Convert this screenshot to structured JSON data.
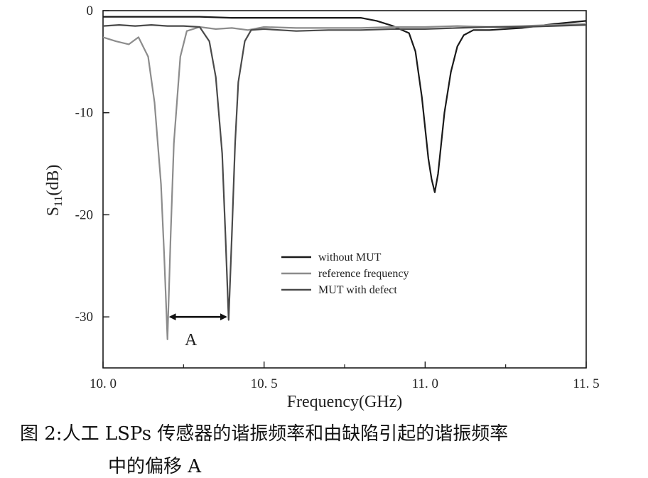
{
  "chart_data": {
    "type": "line",
    "xlabel": "Frequency(GHz)",
    "ylabel_main": "S",
    "ylabel_sub": "11",
    "ylabel_suffix": "(dB)",
    "xlim": [
      10.0,
      11.5
    ],
    "ylim": [
      -35,
      0
    ],
    "xticks": [
      {
        "value": 10.0,
        "label": "10. 0"
      },
      {
        "value": 10.5,
        "label": "10. 5"
      },
      {
        "value": 11.0,
        "label": "11. 0"
      },
      {
        "value": 11.5,
        "label": "11. 5"
      }
    ],
    "yticks": [
      {
        "value": 0,
        "label": "0"
      },
      {
        "value": -10,
        "label": "-10"
      },
      {
        "value": -20,
        "label": "-20"
      },
      {
        "value": -30,
        "label": "-30"
      }
    ],
    "grid": false,
    "legend_position": "center-right",
    "series": [
      {
        "name": "without MUT",
        "color": "#1a1a1a",
        "x": [
          10.0,
          10.1,
          10.2,
          10.3,
          10.4,
          10.5,
          10.6,
          10.7,
          10.8,
          10.85,
          10.9,
          10.95,
          10.97,
          10.99,
          11.01,
          11.02,
          11.03,
          11.04,
          11.06,
          11.08,
          11.1,
          11.12,
          11.15,
          11.2,
          11.3,
          11.4,
          11.5
        ],
        "y": [
          -0.6,
          -0.6,
          -0.6,
          -0.6,
          -0.7,
          -0.7,
          -0.7,
          -0.7,
          -0.7,
          -1.0,
          -1.5,
          -2.2,
          -4.0,
          -8.5,
          -14.5,
          -16.5,
          -17.8,
          -16.0,
          -10.0,
          -6.0,
          -3.5,
          -2.4,
          -1.9,
          -1.9,
          -1.7,
          -1.3,
          -1.0
        ]
      },
      {
        "name": "reference frequency",
        "color": "#8c8c8c",
        "x": [
          10.0,
          10.04,
          10.08,
          10.11,
          10.14,
          10.16,
          10.18,
          10.19,
          10.2,
          10.21,
          10.22,
          10.24,
          10.26,
          10.3,
          10.35,
          10.4,
          10.45,
          10.5,
          10.6,
          10.7,
          10.8,
          10.9,
          11.0,
          11.1,
          11.2,
          11.3,
          11.4,
          11.5
        ],
        "y": [
          -2.6,
          -3.0,
          -3.3,
          -2.6,
          -4.5,
          -9.0,
          -17.0,
          -24.0,
          -32.2,
          -22.0,
          -13.0,
          -4.5,
          -2.0,
          -1.6,
          -1.8,
          -1.7,
          -1.9,
          -1.6,
          -1.7,
          -1.7,
          -1.7,
          -1.6,
          -1.6,
          -1.5,
          -1.6,
          -1.5,
          -1.4,
          -1.3
        ]
      },
      {
        "name": "MUT with defect",
        "color": "#4a4a4a",
        "x": [
          10.0,
          10.05,
          10.1,
          10.15,
          10.2,
          10.25,
          10.3,
          10.33,
          10.35,
          10.37,
          10.38,
          10.39,
          10.4,
          10.41,
          10.42,
          10.44,
          10.46,
          10.5,
          10.55,
          10.6,
          10.7,
          10.8,
          10.9,
          11.0,
          11.1,
          11.2,
          11.3,
          11.4,
          11.5
        ],
        "y": [
          -1.5,
          -1.4,
          -1.5,
          -1.4,
          -1.5,
          -1.5,
          -1.6,
          -3.0,
          -6.5,
          -14.0,
          -22.0,
          -30.3,
          -22.0,
          -13.0,
          -7.0,
          -3.0,
          -1.9,
          -1.8,
          -1.9,
          -2.0,
          -1.9,
          -1.9,
          -1.8,
          -1.8,
          -1.7,
          -1.6,
          -1.6,
          -1.5,
          -1.4
        ]
      }
    ],
    "annotation": {
      "label": "A",
      "from_x": 10.2,
      "to_x": 10.39,
      "y": -30
    }
  },
  "caption": {
    "line1": "图 2:人工 LSPs 传感器的谐振频率和由缺陷引起的谐振频率",
    "line2": "中的偏移 A"
  }
}
